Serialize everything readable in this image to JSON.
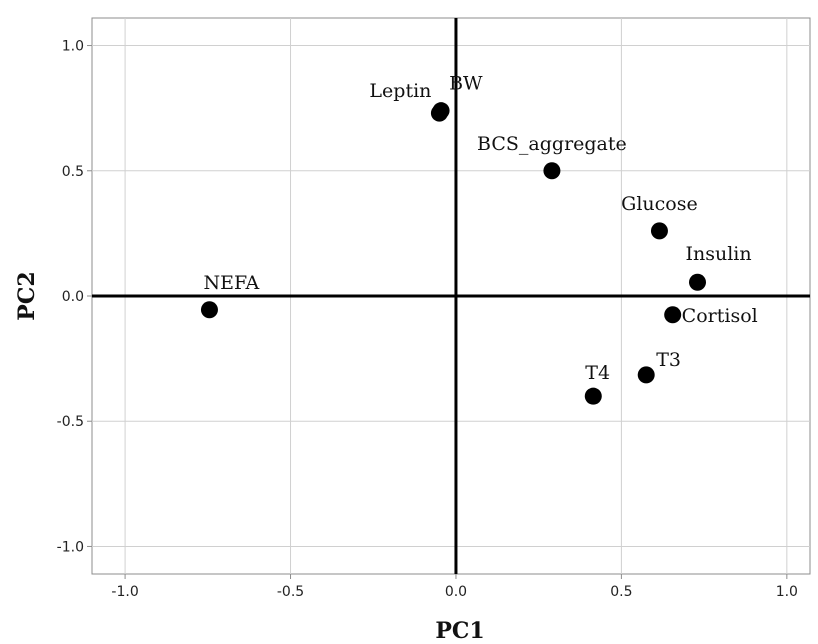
{
  "chart_data": {
    "type": "scatter",
    "title": "",
    "xlabel": "PC1",
    "ylabel": "PC2",
    "xlim": [
      -1.1,
      1.07
    ],
    "ylim": [
      -1.11,
      1.11
    ],
    "grid": true,
    "x_ticks": [
      {
        "value": -1.0,
        "label": "-1.0"
      },
      {
        "value": -0.5,
        "label": "-0.5"
      },
      {
        "value": 0.0,
        "label": "0.0"
      },
      {
        "value": 0.5,
        "label": "0.5"
      },
      {
        "value": 1.0,
        "label": "1.0"
      }
    ],
    "y_ticks": [
      {
        "value": 1.0,
        "label": "1.0"
      },
      {
        "value": 0.5,
        "label": "0.5"
      },
      {
        "value": 0.0,
        "label": "0.0"
      },
      {
        "value": -0.5,
        "label": "-0.5"
      },
      {
        "value": -1.0,
        "label": "-1.0"
      }
    ],
    "points": [
      {
        "name": "Leptin",
        "x": -0.05,
        "y": 0.73
      },
      {
        "name": "BW",
        "x": -0.045,
        "y": 0.74
      },
      {
        "name": "BCS_aggregate",
        "x": 0.29,
        "y": 0.5
      },
      {
        "name": "Glucose",
        "x": 0.615,
        "y": 0.26
      },
      {
        "name": "Insulin",
        "x": 0.73,
        "y": 0.055
      },
      {
        "name": "Cortisol",
        "x": 0.655,
        "y": -0.075
      },
      {
        "name": "NEFA",
        "x": -0.745,
        "y": -0.055
      },
      {
        "name": "T3",
        "x": 0.575,
        "y": -0.315
      },
      {
        "name": "T4",
        "x": 0.415,
        "y": -0.4
      }
    ]
  }
}
